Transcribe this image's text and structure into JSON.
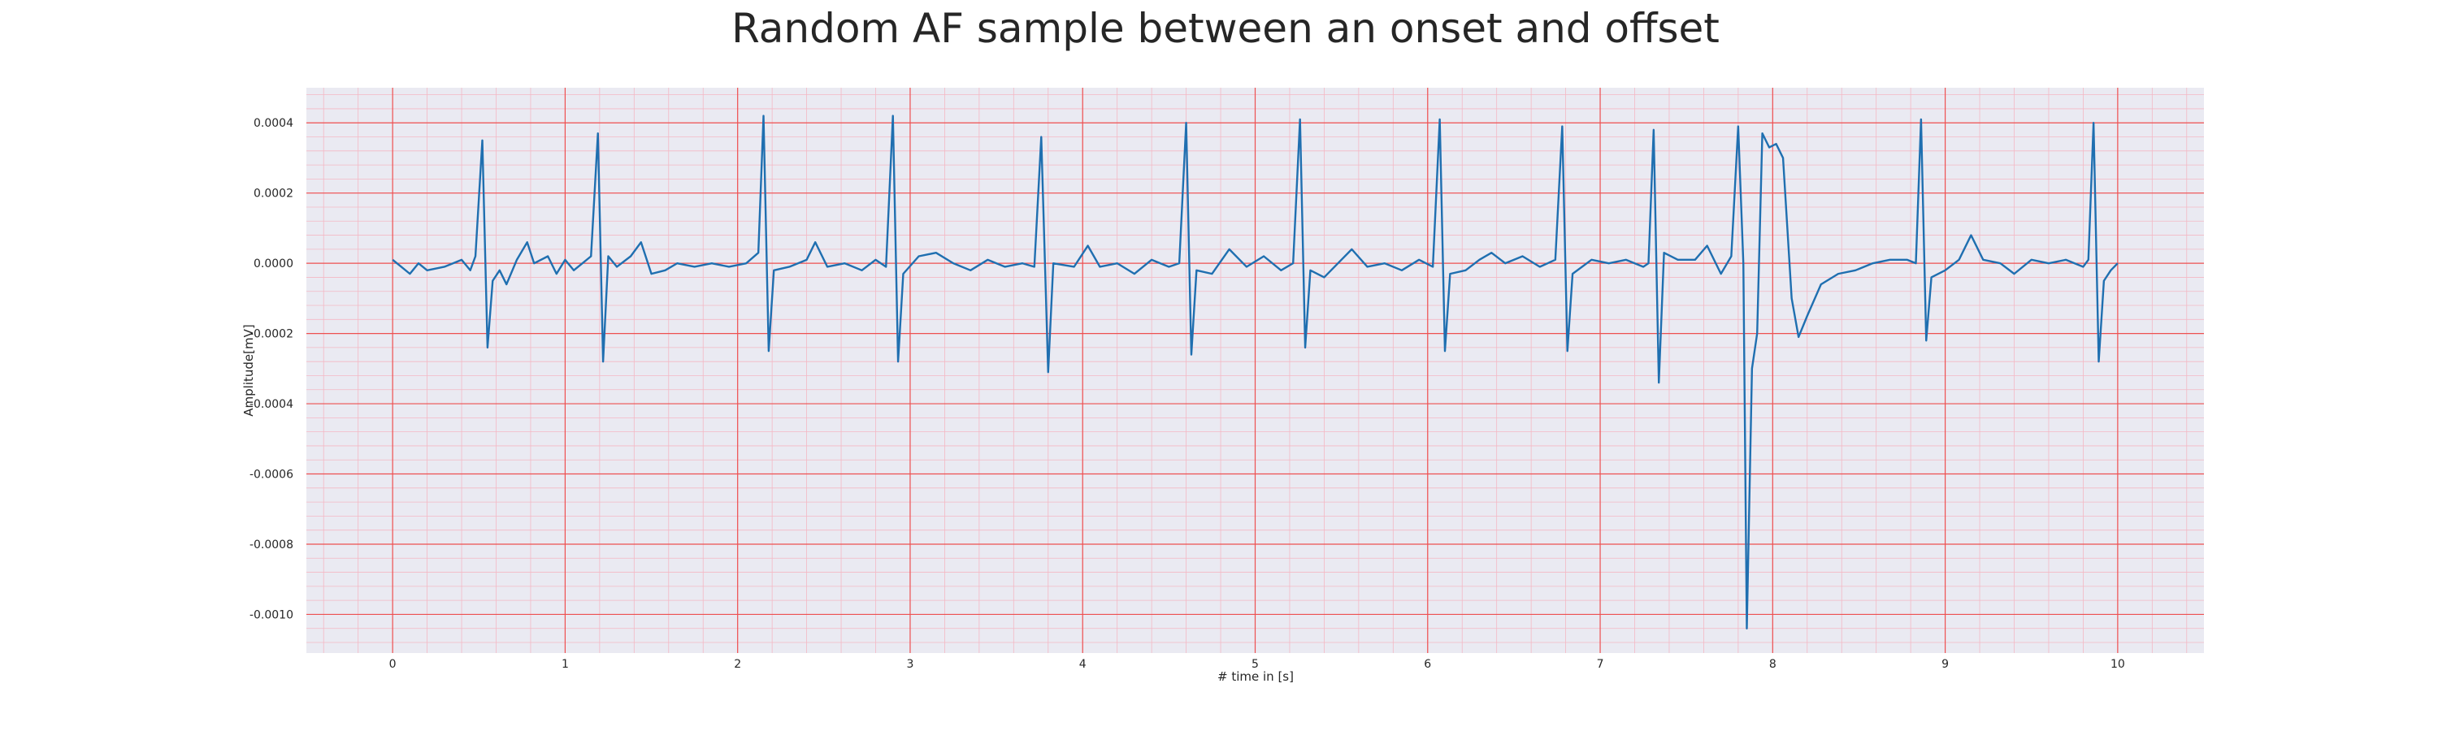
{
  "chart_data": {
    "type": "line",
    "title": "Random AF sample between an onset and offset",
    "xlabel": "# time in [s]",
    "ylabel": "Amplitude[mV]",
    "color": "#1f6fb0",
    "grid": true,
    "minor_grid": true,
    "xlim": [
      -0.5,
      10.5
    ],
    "ylim": [
      -0.00111,
      0.0005
    ],
    "xticks": [
      0,
      1,
      2,
      3,
      4,
      5,
      6,
      7,
      8,
      9,
      10
    ],
    "yticks": [
      {
        "value": -0.001,
        "label": "-0.0010"
      },
      {
        "value": -0.0008,
        "label": "-0.0008"
      },
      {
        "value": -0.0006,
        "label": "-0.0006"
      },
      {
        "value": -0.0004,
        "label": "-0.0004"
      },
      {
        "value": -0.0002,
        "label": "-0.0002"
      },
      {
        "value": 0,
        "label": "0.0000"
      },
      {
        "value": 0.0002,
        "label": "0.0002"
      },
      {
        "value": 0.0004,
        "label": "0.0004"
      }
    ],
    "x": [
      0.0,
      0.05,
      0.1,
      0.15,
      0.2,
      0.3,
      0.4,
      0.45,
      0.48,
      0.52,
      0.55,
      0.58,
      0.62,
      0.66,
      0.72,
      0.78,
      0.82,
      0.9,
      0.95,
      1.0,
      1.05,
      1.1,
      1.15,
      1.19,
      1.22,
      1.25,
      1.3,
      1.38,
      1.44,
      1.5,
      1.58,
      1.65,
      1.75,
      1.85,
      1.95,
      2.05,
      2.12,
      2.15,
      2.18,
      2.21,
      2.3,
      2.4,
      2.45,
      2.52,
      2.62,
      2.72,
      2.8,
      2.86,
      2.9,
      2.93,
      2.96,
      3.05,
      3.15,
      3.25,
      3.35,
      3.45,
      3.55,
      3.65,
      3.72,
      3.76,
      3.8,
      3.83,
      3.95,
      4.03,
      4.1,
      4.2,
      4.3,
      4.4,
      4.5,
      4.56,
      4.6,
      4.63,
      4.66,
      4.75,
      4.85,
      4.95,
      5.05,
      5.15,
      5.22,
      5.26,
      5.29,
      5.32,
      5.4,
      5.5,
      5.56,
      5.65,
      5.75,
      5.85,
      5.95,
      6.03,
      6.07,
      6.1,
      6.13,
      6.22,
      6.3,
      6.37,
      6.45,
      6.55,
      6.65,
      6.74,
      6.78,
      6.81,
      6.84,
      6.95,
      7.05,
      7.15,
      7.25,
      7.28,
      7.31,
      7.34,
      7.37,
      7.45,
      7.55,
      7.62,
      7.7,
      7.76,
      7.8,
      7.83,
      7.85,
      7.88,
      7.91,
      7.94,
      7.98,
      8.02,
      8.06,
      8.11,
      8.15,
      8.2,
      8.28,
      8.38,
      8.48,
      8.58,
      8.68,
      8.78,
      8.83,
      8.86,
      8.89,
      8.92,
      9.0,
      9.08,
      9.15,
      9.22,
      9.32,
      9.4,
      9.5,
      9.6,
      9.7,
      9.8,
      9.83,
      9.86,
      9.89,
      9.92,
      9.96,
      10.0
    ],
    "values": [
      1e-05,
      -1e-05,
      -3e-05,
      0.0,
      -2e-05,
      -1e-05,
      1e-05,
      -2e-05,
      2e-05,
      0.00035,
      -0.00024,
      -5e-05,
      -2e-05,
      -6e-05,
      1e-05,
      6e-05,
      0.0,
      2e-05,
      -3e-05,
      1e-05,
      -2e-05,
      0.0,
      2e-05,
      0.00037,
      -0.00028,
      2e-05,
      -1e-05,
      2e-05,
      6e-05,
      -3e-05,
      -2e-05,
      0.0,
      -1e-05,
      0.0,
      -1e-05,
      0.0,
      3e-05,
      0.00042,
      -0.00025,
      -2e-05,
      -1e-05,
      1e-05,
      6e-05,
      -1e-05,
      0.0,
      -2e-05,
      1e-05,
      -1e-05,
      0.00042,
      -0.00028,
      -3e-05,
      2e-05,
      3e-05,
      0.0,
      -2e-05,
      1e-05,
      -1e-05,
      0.0,
      -1e-05,
      0.00036,
      -0.00031,
      0.0,
      -1e-05,
      5e-05,
      -1e-05,
      0.0,
      -3e-05,
      1e-05,
      -1e-05,
      0.0,
      0.0004,
      -0.00026,
      -2e-05,
      -3e-05,
      4e-05,
      -1e-05,
      2e-05,
      -2e-05,
      0.0,
      0.00041,
      -0.00024,
      -2e-05,
      -4e-05,
      1e-05,
      4e-05,
      -1e-05,
      0.0,
      -2e-05,
      1e-05,
      -1e-05,
      0.00041,
      -0.00025,
      -3e-05,
      -2e-05,
      1e-05,
      3e-05,
      0.0,
      2e-05,
      -1e-05,
      1e-05,
      0.00039,
      -0.00025,
      -3e-05,
      1e-05,
      0.0,
      1e-05,
      -1e-05,
      0.0,
      0.00038,
      -0.00034,
      3e-05,
      1e-05,
      1e-05,
      5e-05,
      -3e-05,
      2e-05,
      0.00039,
      0.0,
      -0.00104,
      -0.0003,
      -0.0002,
      0.00037,
      0.00033,
      0.00034,
      0.0003,
      -0.0001,
      -0.00021,
      -0.00015,
      -6e-05,
      -3e-05,
      -2e-05,
      0.0,
      1e-05,
      1e-05,
      0.0,
      0.00041,
      -0.00022,
      -4e-05,
      -2e-05,
      1e-05,
      8e-05,
      1e-05,
      0.0,
      -3e-05,
      1e-05,
      0.0,
      1e-05,
      -1e-05,
      1e-05,
      0.0004,
      -0.00028,
      -5e-05,
      -2e-05,
      0.0
    ]
  }
}
